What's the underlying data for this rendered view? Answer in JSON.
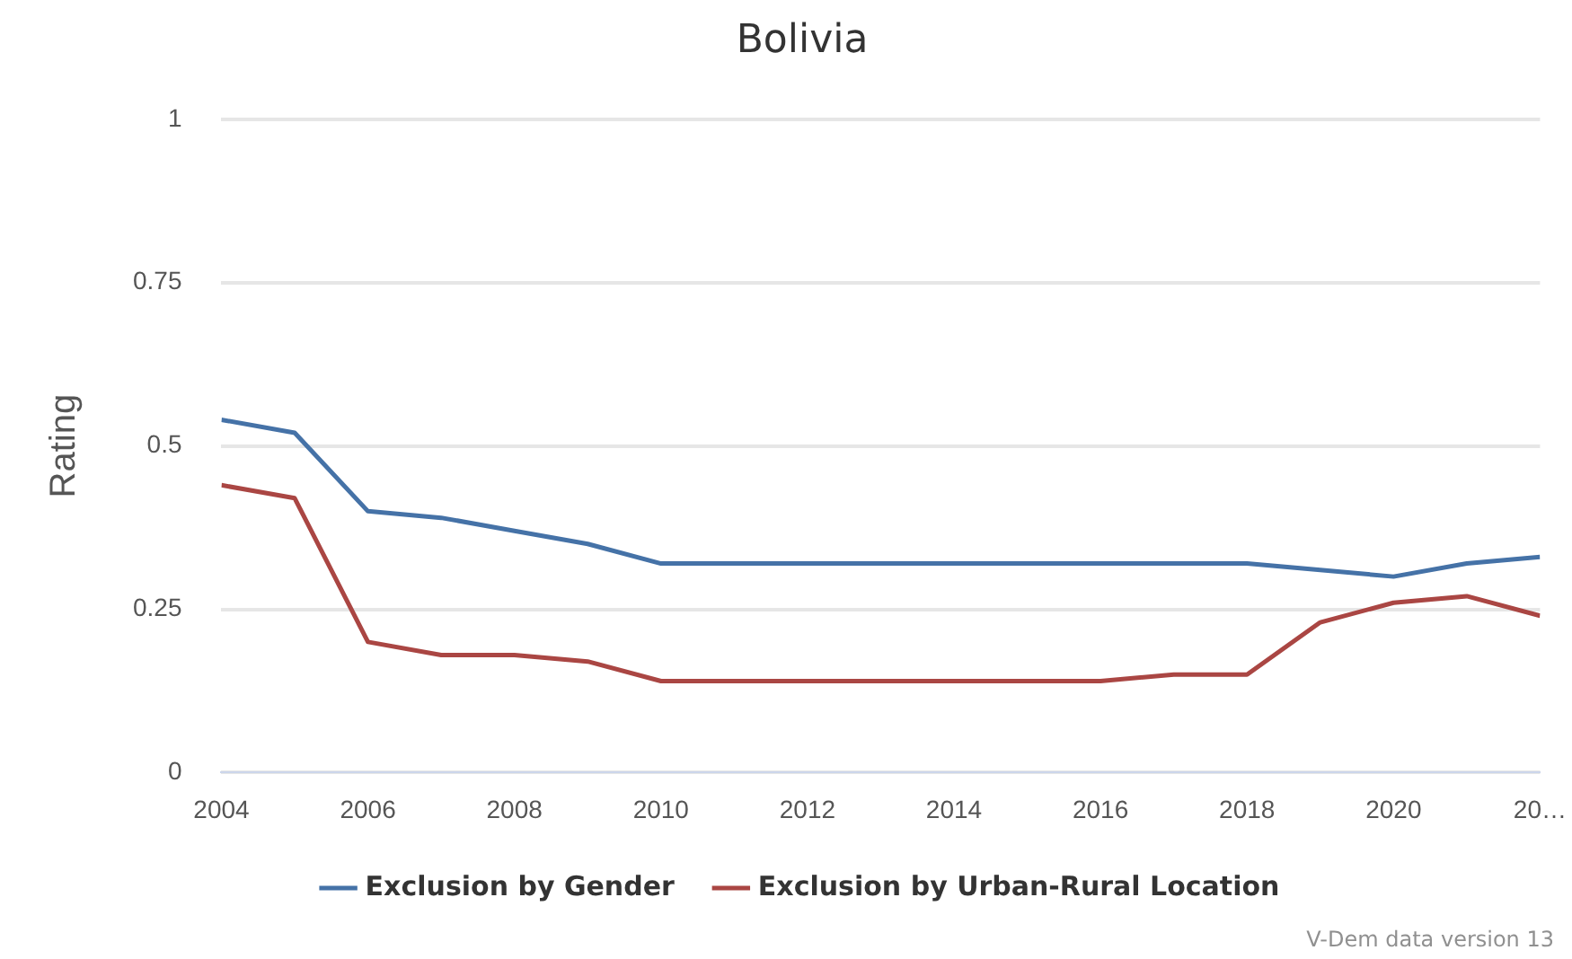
{
  "chart_data": {
    "type": "line",
    "title": "Bolivia",
    "ylabel": "Rating",
    "x": [
      2004,
      2005,
      2006,
      2007,
      2008,
      2009,
      2010,
      2011,
      2012,
      2013,
      2014,
      2015,
      2016,
      2017,
      2018,
      2019,
      2020,
      2021,
      2022
    ],
    "series": [
      {
        "name": "Exclusion by Gender",
        "color": "#4572a7",
        "values": [
          0.54,
          0.52,
          0.4,
          0.39,
          0.37,
          0.35,
          0.32,
          0.32,
          0.32,
          0.32,
          0.32,
          0.32,
          0.32,
          0.32,
          0.32,
          0.31,
          0.3,
          0.32,
          0.33
        ]
      },
      {
        "name": "Exclusion by Urban-Rural Location",
        "color": "#aa4643",
        "values": [
          0.44,
          0.42,
          0.2,
          0.18,
          0.18,
          0.17,
          0.14,
          0.14,
          0.14,
          0.14,
          0.14,
          0.14,
          0.14,
          0.15,
          0.15,
          0.23,
          0.26,
          0.27,
          0.24
        ]
      }
    ],
    "xlim": [
      2004,
      2022
    ],
    "xticks": [
      2004,
      2006,
      2008,
      2010,
      2012,
      2014,
      2016,
      2018,
      2020,
      {
        "value": 2022,
        "label": "20…"
      }
    ],
    "ylim": [
      0,
      1
    ],
    "yticks": [
      0,
      0.25,
      0.5,
      0.75,
      1
    ],
    "grid": "y",
    "legend": "bottom",
    "marker": "none",
    "line_style": "solid",
    "annotations": [
      "V-Dem data version 13"
    ]
  }
}
